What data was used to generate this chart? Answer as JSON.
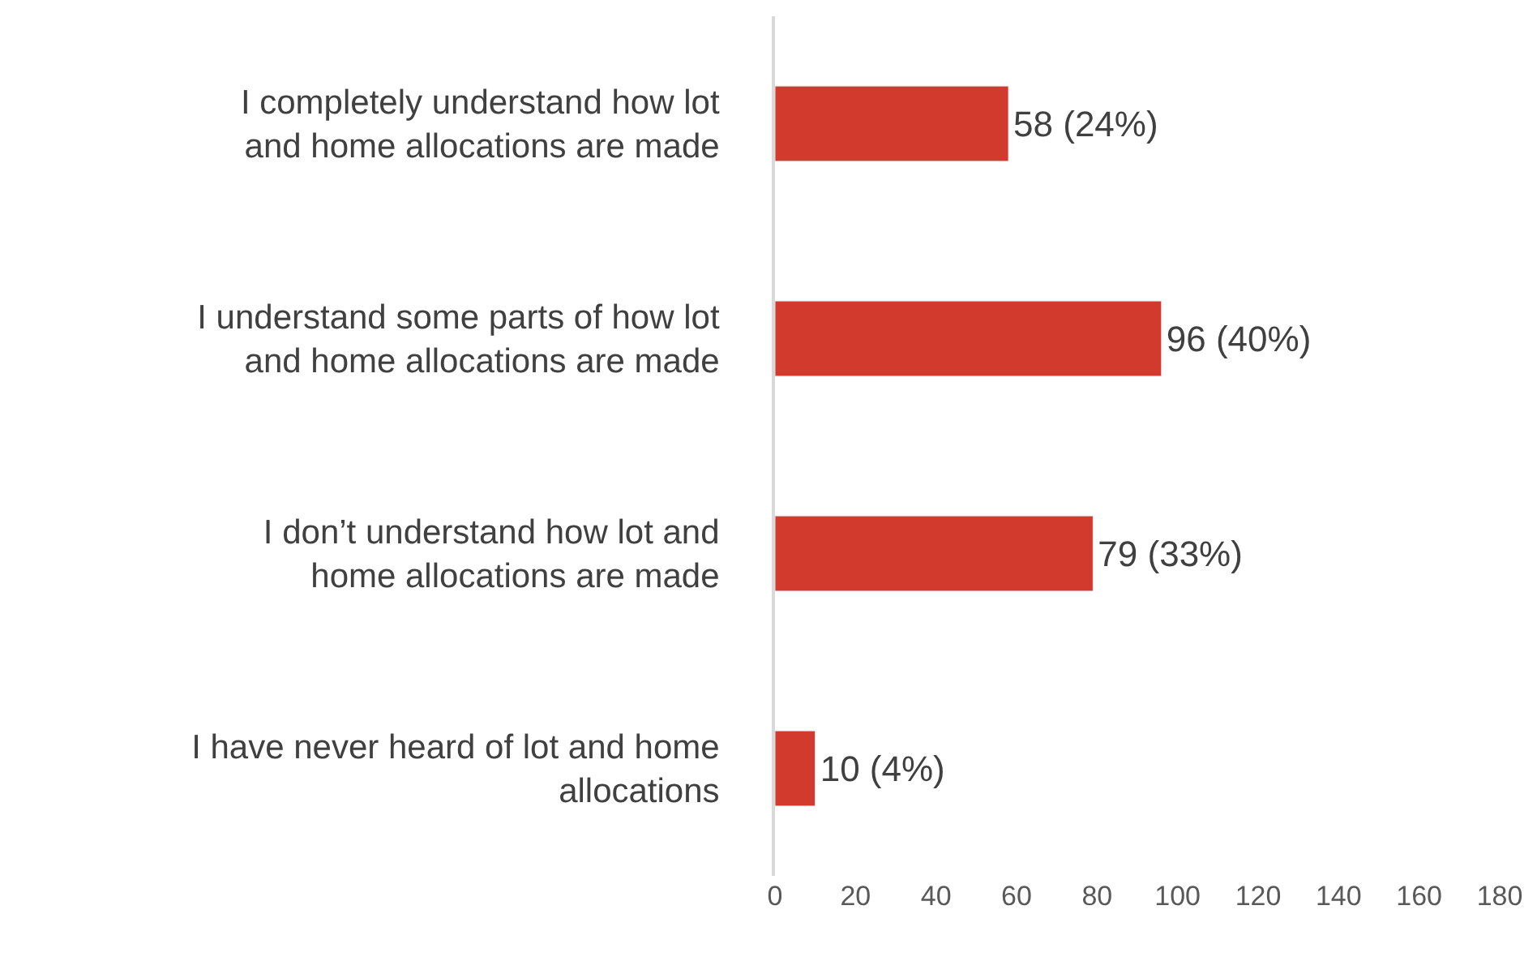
{
  "chart_data": {
    "type": "bar",
    "orientation": "horizontal",
    "categories": [
      "I completely understand how lot and home allocations are made",
      "I understand some parts of how lot and home allocations are made",
      "I don’t understand how lot and home allocations are made",
      "I have never heard of lot and home allocations"
    ],
    "values": [
      58,
      96,
      79,
      10
    ],
    "value_labels": [
      "58 (24%)",
      "96 (40%)",
      "79 (33%)",
      "10 (4%)"
    ],
    "color": "#d13a2c",
    "xlim": [
      0,
      180
    ],
    "xticks": [
      0,
      20,
      40,
      60,
      80,
      100,
      120,
      140,
      160,
      180
    ]
  }
}
